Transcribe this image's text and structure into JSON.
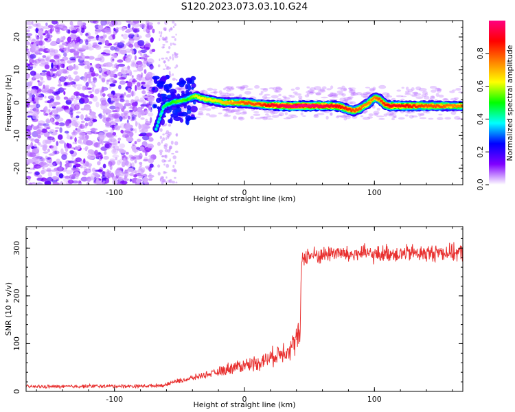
{
  "title": "S120.2023.073.03.10.G24",
  "chart_data": [
    {
      "type": "heatmap",
      "xlabel": "Height of straight line (km)",
      "ylabel": "Frequency (Hz)",
      "xlim": [
        -168,
        168
      ],
      "ylim": [
        -25,
        25
      ],
      "x_ticks": [
        -100,
        0,
        100
      ],
      "y_ticks": [
        -20,
        -10,
        0,
        10,
        20
      ],
      "colorbar": {
        "label": "Normalized spectral amplitude",
        "range": [
          0,
          1
        ],
        "ticks": [
          "0.0",
          "0.2",
          "0.4",
          "0.6",
          "0.8"
        ],
        "colors": [
          "#ffffff",
          "#8000ff",
          "#0000ff",
          "#00ffff",
          "#00ff00",
          "#ffff00",
          "#ff8000",
          "#ff0000",
          "#ff0080"
        ]
      },
      "ridge": {
        "x": [
          -68,
          -62,
          -56,
          -50,
          -44,
          -38,
          -30,
          -22,
          -14,
          -6,
          0,
          10,
          20,
          30,
          40,
          50,
          60,
          70,
          76,
          80,
          84,
          88,
          92,
          96,
          100,
          104,
          108,
          112,
          120,
          130,
          140,
          150,
          160,
          168
        ],
        "y": [
          -8,
          -1,
          0,
          0.5,
          1,
          2,
          1,
          0.5,
          0,
          0,
          0,
          -0.5,
          -0.8,
          -1,
          -1,
          -1,
          -1,
          -1,
          -1.5,
          -2,
          -2.5,
          -2,
          -1,
          0,
          1.5,
          1,
          -0.5,
          -1,
          -1,
          -1,
          -1,
          -1,
          -1,
          -1
        ],
        "strength": [
          0.4,
          0.45,
          0.5,
          0.55,
          0.5,
          0.6,
          0.65,
          0.65,
          0.7,
          0.75,
          0.8,
          0.8,
          0.9,
          0.95,
          1,
          1,
          0.95,
          0.9,
          0.85,
          0.85,
          0.8,
          0.8,
          0.75,
          0.75,
          0.75,
          0.8,
          0.85,
          0.9,
          0.9,
          0.85,
          0.8,
          0.8,
          0.75,
          0.75
        ]
      }
    },
    {
      "type": "line",
      "xlabel": "Height of straight line (km)",
      "ylabel": "SNR (10 * v/v)",
      "xlim": [
        -168,
        168
      ],
      "ylim": [
        0,
        345
      ],
      "x_ticks": [
        -100,
        0,
        100
      ],
      "y_ticks": [
        0,
        100,
        200,
        300
      ],
      "series": [
        {
          "color": "#e8302f",
          "x": [
            -168,
            -140,
            -120,
            -100,
            -80,
            -60,
            -55,
            -50,
            -40,
            -30,
            -20,
            -10,
            0,
            10,
            20,
            30,
            35,
            38,
            40,
            43,
            44,
            50,
            60,
            70,
            80,
            90,
            100,
            110,
            120,
            130,
            140,
            150,
            160,
            168
          ],
          "y": [
            10,
            10,
            11,
            11,
            11,
            13,
            20,
            22,
            28,
            35,
            40,
            50,
            55,
            60,
            70,
            85,
            90,
            100,
            110,
            115,
            280,
            285,
            285,
            292,
            285,
            290,
            285,
            290,
            288,
            290,
            288,
            292,
            290,
            290
          ]
        }
      ]
    }
  ]
}
